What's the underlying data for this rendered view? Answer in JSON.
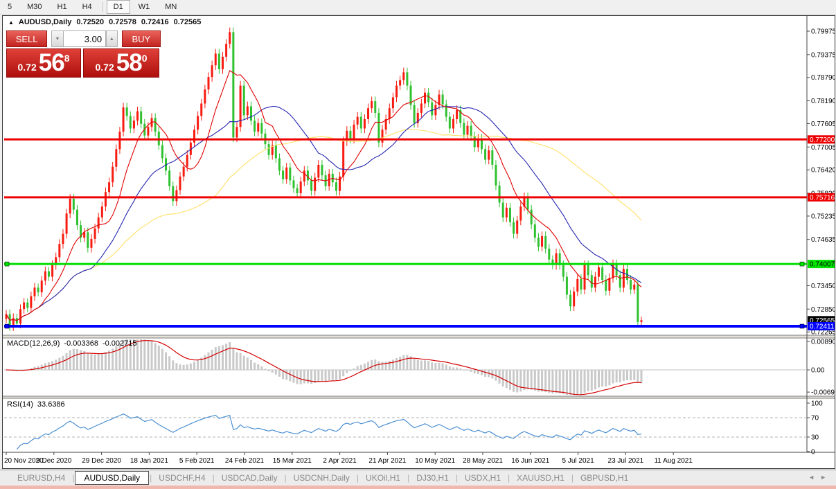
{
  "toolbar": {
    "timeframes": [
      "5",
      "M30",
      "H1",
      "H4",
      "D1",
      "W1",
      "MN"
    ],
    "active": "D1"
  },
  "icons": {
    "collapse": "▲",
    "spinner_down": "▼",
    "spinner_up": "▲",
    "tab_scroll_left": "◄",
    "tab_scroll_right": "►"
  },
  "chart_header": {
    "symbol_title": "AUDUSD,Daily",
    "open": "0.72520",
    "high": "0.72578",
    "low": "0.72416",
    "close": "0.72565"
  },
  "trade_panel": {
    "sell_label": "SELL",
    "buy_label": "BUY",
    "volume": "3.00",
    "sell_quote": {
      "base": "0.72",
      "big": "56",
      "sup": "8"
    },
    "buy_quote": {
      "base": "0.72",
      "big": "58",
      "sup": "0"
    }
  },
  "macd_panel": {
    "label": "MACD(12,26,9)",
    "value_main": "-0.003368",
    "value_signal": "-0.002715"
  },
  "rsi_panel": {
    "label": "RSI(14)",
    "value": "33.6386"
  },
  "bottom_tabs": {
    "separator": "|",
    "active": "AUDUSD,Daily",
    "tabs": [
      "EURUSD,H4",
      "AUDUSD,Daily",
      "USDCHF,H4",
      "USDCAD,Daily",
      "USDCNH,Daily",
      "UKOil,H1",
      "DJ30,H1",
      "USDX,H1",
      "XAUUSD,H1",
      "GBPUSD,H1"
    ]
  },
  "chart_data": {
    "type": "candlestick",
    "symbol": "AUDUSD",
    "timeframe": "Daily",
    "title": "AUDUSD,Daily",
    "ohlc_current": {
      "open": 0.7252,
      "high": 0.72578,
      "low": 0.72416,
      "close": 0.72565
    },
    "price_range": [
      0.7218,
      0.8033
    ],
    "up_color": "#f81c10",
    "down_color": "#2fc12f",
    "first_open": 0.726,
    "closes": [
      0.7272,
      0.7241,
      0.7262,
      0.7248,
      0.7285,
      0.7302,
      0.7288,
      0.7318,
      0.734,
      0.7328,
      0.7358,
      0.7382,
      0.7368,
      0.7398,
      0.7418,
      0.7452,
      0.7478,
      0.753,
      0.7568,
      0.754,
      0.75,
      0.7468,
      0.7482,
      0.7442,
      0.7465,
      0.7492,
      0.752,
      0.7548,
      0.7585,
      0.761,
      0.765,
      0.7695,
      0.774,
      0.7802,
      0.778,
      0.7748,
      0.7768,
      0.7792,
      0.776,
      0.773,
      0.7752,
      0.7775,
      0.774,
      0.7705,
      0.7672,
      0.764,
      0.76,
      0.7562,
      0.759,
      0.7625,
      0.765,
      0.768,
      0.7712,
      0.7745,
      0.778,
      0.7812,
      0.7848,
      0.788,
      0.791,
      0.794,
      0.79,
      0.7932,
      0.7965,
      0.7995,
      0.7725,
      0.7752,
      0.7858,
      0.7782,
      0.7805,
      0.7768,
      0.774,
      0.7762,
      0.7735,
      0.7708,
      0.768,
      0.7705,
      0.7672,
      0.764,
      0.7618,
      0.7648,
      0.7615,
      0.7595,
      0.7582,
      0.7612,
      0.764,
      0.7615,
      0.7588,
      0.7622,
      0.7655,
      0.7628,
      0.76,
      0.7632,
      0.761,
      0.7588,
      0.7625,
      0.7715,
      0.7742,
      0.7722,
      0.7758,
      0.7778,
      0.7748,
      0.7772,
      0.78,
      0.7818,
      0.7788,
      0.7712,
      0.7745,
      0.7772,
      0.78,
      0.7828,
      0.7858,
      0.7872,
      0.7892,
      0.7858,
      0.7808,
      0.7762,
      0.7788,
      0.7812,
      0.784,
      0.7815,
      0.7782,
      0.7808,
      0.7835,
      0.781,
      0.7778,
      0.7748,
      0.7772,
      0.7795,
      0.7762,
      0.7732,
      0.7755,
      0.7728,
      0.77,
      0.7722,
      0.7695,
      0.7668,
      0.7692,
      0.7655,
      0.7602,
      0.7558,
      0.752,
      0.7545,
      0.7508,
      0.7478,
      0.7512,
      0.7548,
      0.7572,
      0.754,
      0.7502,
      0.7468,
      0.7445,
      0.7472,
      0.744,
      0.7412,
      0.7398,
      0.7428,
      0.7398,
      0.7368,
      0.7322,
      0.7292,
      0.733,
      0.7362,
      0.7335,
      0.7398,
      0.7372,
      0.734,
      0.7368,
      0.7392,
      0.736,
      0.7332,
      0.7365,
      0.74,
      0.7372,
      0.734,
      0.7388,
      0.736,
      0.7335,
      0.7348,
      0.7252,
      0.72565
    ],
    "x_labels": [
      "20 Nov 2020",
      "9 Dec 2020",
      "29 Dec 2020",
      "18 Jan 2021",
      "5 Feb 2021",
      "24 Feb 2021",
      "15 Mar 2021",
      "2 Apr 2021",
      "21 Apr 2021",
      "10 May 2021",
      "28 May 2021",
      "16 Jun 2021",
      "5 Jul 2021",
      "23 Jul 2021",
      "11 Aug 2021"
    ],
    "price_ticks": [
      0.79975,
      0.79375,
      0.7879,
      0.7819,
      0.77605,
      0.77005,
      0.7642,
      0.7582,
      0.75235,
      0.74635,
      0.7345,
      0.7285,
      0.72265
    ],
    "h_lines": [
      {
        "price": 0.772,
        "color": "#ee0000",
        "width": 3,
        "handles": false
      },
      {
        "price": 0.75716,
        "color": "#ee0000",
        "width": 3,
        "handles": false
      },
      {
        "price": 0.74007,
        "color": "#00dd00",
        "width": 3,
        "handles": true
      },
      {
        "price": 0.72411,
        "color": "#0000ff",
        "width": 4,
        "handles": true
      }
    ],
    "axis_labels": [
      {
        "text": "0.77200",
        "price": 0.772,
        "bg": "#ee0000",
        "fg": "#ffffff"
      },
      {
        "text": "0.75716",
        "price": 0.75716,
        "bg": "#ee0000",
        "fg": "#ffffff"
      },
      {
        "text": "0.74007",
        "price": 0.74007,
        "bg": "#00e400",
        "fg": "#000000"
      },
      {
        "text": "0.72565",
        "price": 0.72565,
        "bg": "#000000",
        "fg": "#ffffff"
      },
      {
        "text": "0.72411",
        "price": 0.72411,
        "bg": "#0000ff",
        "fg": "#ffffff"
      }
    ],
    "moving_averages": [
      {
        "period": 10,
        "color": "#e00000"
      },
      {
        "period": 25,
        "color": "#2424b0"
      },
      {
        "period": 60,
        "color": "#ffe066"
      }
    ],
    "indicators": {
      "macd": {
        "label": "MACD(12,26,9)",
        "fast": 12,
        "slow": 26,
        "signal": 9,
        "value_main": "-0.003368",
        "value_signal": "-0.002715",
        "axis": [
          {
            "text": "0.008903",
            "value": 0.008903
          },
          {
            "text": "0.00",
            "value": 0
          },
          {
            "text": "-0.00697",
            "value": -0.00697
          }
        ],
        "hist_color": "#c9c9c9",
        "signal_color": "#d40000"
      },
      "rsi": {
        "label": "RSI(14)",
        "period": 14,
        "value": "33.6386",
        "axis": [
          100,
          70,
          30,
          0
        ],
        "levels": [
          70,
          30
        ],
        "line_color": "#4a8fd2"
      }
    }
  }
}
